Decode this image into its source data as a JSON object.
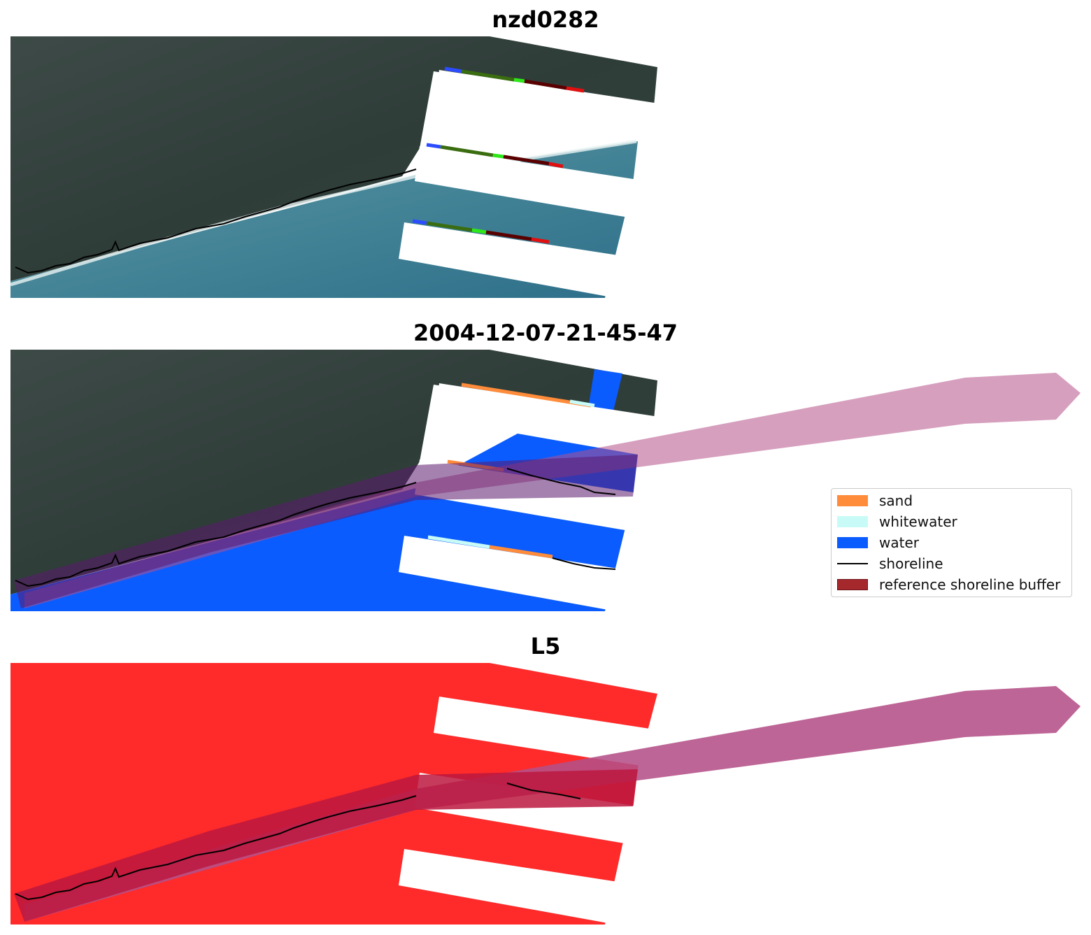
{
  "panels": [
    {
      "title": "nzd0282",
      "kind": "rgb"
    },
    {
      "title": "2004-12-07-21-45-47",
      "kind": "classified"
    },
    {
      "title": "L5",
      "kind": "mask"
    }
  ],
  "legend": {
    "items": [
      {
        "label": "sand",
        "color": "#ff8c3a",
        "type": "patch"
      },
      {
        "label": "whitewater",
        "color": "#c8fbf7",
        "type": "patch"
      },
      {
        "label": "water",
        "color": "#0a5cff",
        "type": "patch"
      },
      {
        "label": "shoreline",
        "color": "#000000",
        "type": "line"
      },
      {
        "label": "reference shoreline buffer",
        "color": "#a5282d",
        "type": "patch"
      }
    ]
  },
  "colors": {
    "land": "#35423f",
    "ocean": "#3f7f94",
    "buffer": "#b45088",
    "mask": "#ff2a2a",
    "mask_buffer": "#bc1740"
  }
}
